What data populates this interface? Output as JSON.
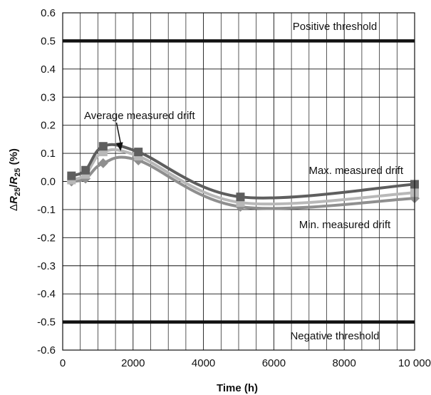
{
  "chart_data": {
    "type": "line",
    "xlabel": "Time (h)",
    "ylabel_prefix": "Δ",
    "ylabel_r": "R",
    "ylabel_sub": "25",
    "ylabel_slash": "/",
    "ylabel_unit": " (%)",
    "xlim": [
      0,
      10000
    ],
    "ylim": [
      -0.6,
      0.6
    ],
    "x_ticks": [
      {
        "value": 0,
        "label": "0"
      },
      {
        "value": 2000,
        "label": "2000"
      },
      {
        "value": 4000,
        "label": "4000"
      },
      {
        "value": 6000,
        "label": "6000"
      },
      {
        "value": 8000,
        "label": "8000"
      },
      {
        "value": 10000,
        "label": "10 000"
      }
    ],
    "y_ticks": [
      {
        "value": 0.6,
        "label": "0.6"
      },
      {
        "value": 0.5,
        "label": "0.5"
      },
      {
        "value": 0.4,
        "label": "0.4"
      },
      {
        "value": 0.3,
        "label": "0.3"
      },
      {
        "value": 0.2,
        "label": "0.2"
      },
      {
        "value": 0.1,
        "label": "0.1"
      },
      {
        "value": 0.0,
        "label": "0.0"
      },
      {
        "value": -0.1,
        "label": "-0.1"
      },
      {
        "value": -0.2,
        "label": "-0.2"
      },
      {
        "value": -0.3,
        "label": "-0.3"
      },
      {
        "value": -0.4,
        "label": "-0.4"
      },
      {
        "value": -0.5,
        "label": "-0.5"
      },
      {
        "value": -0.6,
        "label": "-0.6"
      }
    ],
    "grid": true,
    "x_minor_step": 500,
    "thresholds": [
      {
        "name": "Positive threshold",
        "value": 0.5
      },
      {
        "name": "Negative threshold",
        "value": -0.5
      }
    ],
    "series": [
      {
        "name": "Max. measured drift",
        "color": "#5e5e5e",
        "marker": "square",
        "x": [
          250,
          650,
          1150,
          2150,
          5050,
          10000
        ],
        "y": [
          0.02,
          0.04,
          0.125,
          0.105,
          -0.055,
          -0.01
        ]
      },
      {
        "name": "Average measured drift",
        "color": "#b8b8b8",
        "marker": "square",
        "x": [
          250,
          650,
          1150,
          2150,
          5050,
          10000
        ],
        "y": [
          0.005,
          0.025,
          0.105,
          0.09,
          -0.075,
          -0.04
        ]
      },
      {
        "name": "Min. measured drift",
        "color": "#8f8f8f",
        "marker": "diamond",
        "x": [
          250,
          650,
          1150,
          2150,
          5050,
          10000
        ],
        "y": [
          0.0,
          0.01,
          0.065,
          0.075,
          -0.09,
          -0.06
        ]
      }
    ],
    "annotation_arrow": {
      "target_series": "Average measured drift",
      "x": 1650,
      "y": 0.108
    }
  }
}
